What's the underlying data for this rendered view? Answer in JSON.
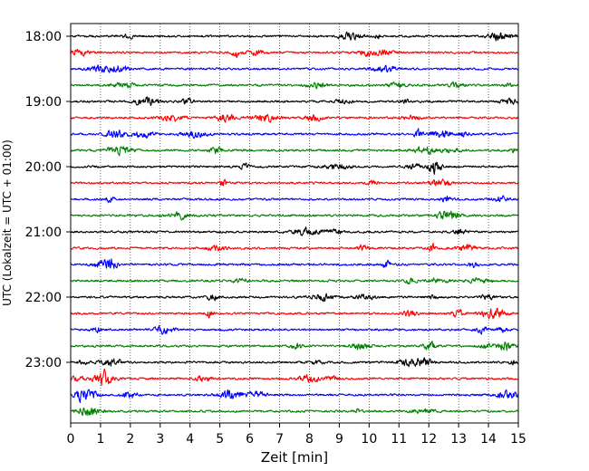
{
  "chart_data": {
    "type": "line",
    "title": "",
    "xlabel": "Zeit  [min]",
    "ylabel": "UTC (Lokalzeit = UTC + 01:00)",
    "xlim": [
      0,
      15
    ],
    "x_ticks": [
      0,
      1,
      2,
      3,
      4,
      5,
      6,
      7,
      8,
      9,
      10,
      11,
      12,
      13,
      14,
      15
    ],
    "x_grid": "dotted vertical lines at each minute",
    "y_ticks": [
      "18:00",
      "19:00",
      "20:00",
      "21:00",
      "22:00",
      "23:00"
    ],
    "trace_colors": [
      "#000000",
      "#ff0000",
      "#0000ff",
      "#007f00"
    ],
    "trace_interval_minutes": 15,
    "traces": [
      {
        "start": "18:00",
        "color": "#000000"
      },
      {
        "start": "18:15",
        "color": "#ff0000"
      },
      {
        "start": "18:30",
        "color": "#0000ff"
      },
      {
        "start": "18:45",
        "color": "#007f00"
      },
      {
        "start": "19:00",
        "color": "#000000"
      },
      {
        "start": "19:15",
        "color": "#ff0000"
      },
      {
        "start": "19:30",
        "color": "#0000ff"
      },
      {
        "start": "19:45",
        "color": "#007f00"
      },
      {
        "start": "20:00",
        "color": "#000000"
      },
      {
        "start": "20:15",
        "color": "#ff0000"
      },
      {
        "start": "20:30",
        "color": "#0000ff"
      },
      {
        "start": "20:45",
        "color": "#007f00"
      },
      {
        "start": "21:00",
        "color": "#000000"
      },
      {
        "start": "21:15",
        "color": "#ff0000"
      },
      {
        "start": "21:30",
        "color": "#0000ff"
      },
      {
        "start": "21:45",
        "color": "#007f00"
      },
      {
        "start": "22:00",
        "color": "#000000"
      },
      {
        "start": "22:15",
        "color": "#ff0000"
      },
      {
        "start": "22:30",
        "color": "#0000ff"
      },
      {
        "start": "22:45",
        "color": "#007f00"
      },
      {
        "start": "23:00",
        "color": "#000000"
      },
      {
        "start": "23:15",
        "color": "#ff0000"
      },
      {
        "start": "23:30",
        "color": "#0000ff"
      },
      {
        "start": "23:45",
        "color": "#007f00"
      }
    ]
  }
}
